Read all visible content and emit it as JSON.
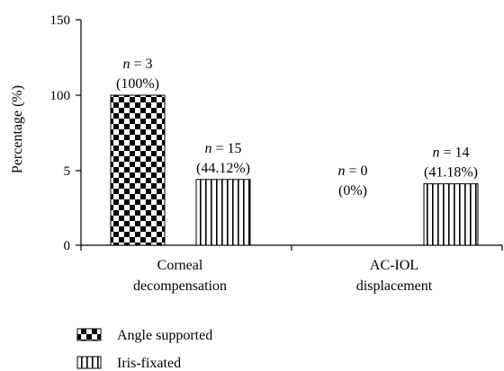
{
  "chart_data": {
    "type": "bar",
    "ylabel": "Percentage (%)",
    "y_ticks": [
      "0",
      "5",
      "100",
      "150"
    ],
    "axis_note": "broken y-axis: lower segment 0–5 (displayed), upper segment 50–150",
    "categories": [
      [
        "Corneal",
        "decompensation"
      ],
      [
        "AC-IOL",
        "displacement"
      ]
    ],
    "series": [
      {
        "name": "Angle supported",
        "pattern": "checkerboard",
        "values": [
          100,
          0
        ],
        "labels": [
          [
            "n = 3",
            "(100%)"
          ],
          [
            "n = 0",
            "(0%)"
          ]
        ]
      },
      {
        "name": "Iris-fixated",
        "pattern": "vertical-stripes",
        "values": [
          44.12,
          41.18
        ],
        "labels": [
          [
            "n = 15",
            "(44.12%)"
          ],
          [
            "n = 14",
            "(41.18%)"
          ]
        ]
      }
    ],
    "legend_position": "bottom-left",
    "grid": false
  }
}
